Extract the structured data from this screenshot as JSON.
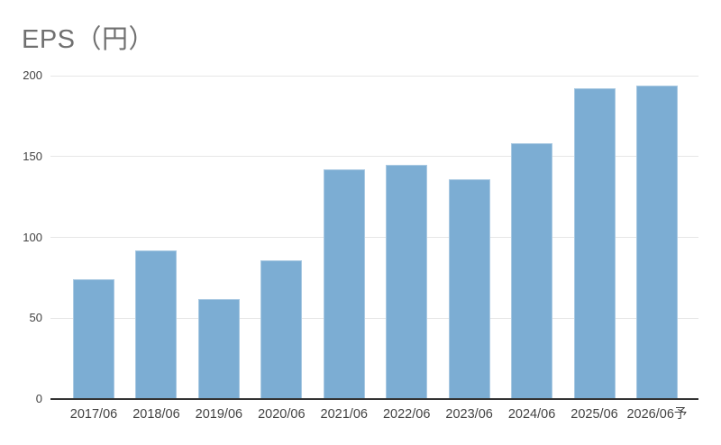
{
  "page": {
    "background": "#ffffff"
  },
  "header": {
    "title": "EPS（円）",
    "title_color": "#707070"
  },
  "chart_data": {
    "type": "bar",
    "title": "EPS（円）",
    "categories": [
      "2017/06",
      "2018/06",
      "2019/06",
      "2020/06",
      "2021/06",
      "2022/06",
      "2023/06",
      "2024/06",
      "2025/06",
      "2026/06予"
    ],
    "values": [
      74,
      92,
      62,
      86,
      142,
      145,
      136,
      158,
      192,
      194
    ],
    "xlabel": "",
    "ylabel": "",
    "ylim": [
      0,
      200
    ],
    "yticks": [
      0,
      50,
      100,
      150,
      200
    ],
    "grid": true,
    "legend": "none",
    "bar_color": "#7CADD3",
    "grid_color": "#e6e6e6",
    "axis_color": "#333333",
    "tick_label_color": "#424242",
    "note": "last category suffix 予 means forecast"
  }
}
